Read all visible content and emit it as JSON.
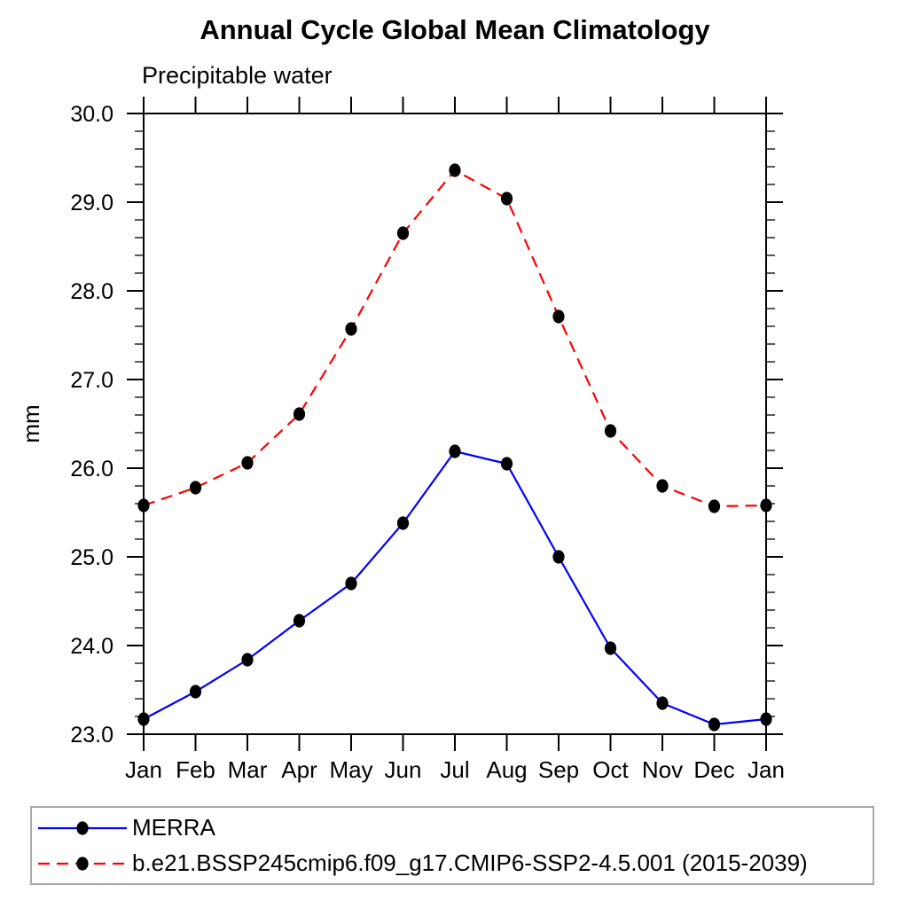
{
  "page": {
    "background": "#ffffff"
  },
  "chart_data": {
    "type": "line",
    "title": "Annual Cycle Global Mean Climatology",
    "subtitle": "Precipitable water",
    "ylabel": "mm",
    "xlabel": "",
    "categories": [
      "Jan",
      "Feb",
      "Mar",
      "Apr",
      "May",
      "Jun",
      "Jul",
      "Aug",
      "Sep",
      "Oct",
      "Nov",
      "Dec",
      "Jan"
    ],
    "ylim": [
      23.0,
      30.0
    ],
    "ytick_labels": [
      "23.0",
      "24.0",
      "25.0",
      "26.0",
      "27.0",
      "28.0",
      "29.0",
      "30.0"
    ],
    "ytick_values": [
      23.0,
      24.0,
      25.0,
      26.0,
      27.0,
      28.0,
      29.0,
      30.0
    ],
    "y_minor_tick_interval": 0.2,
    "grid": false,
    "legend_position": "bottom-left-box",
    "marker": {
      "shape": "ellipse",
      "color": "#000000"
    },
    "series": [
      {
        "name": "MERRA",
        "color": "#0000ff",
        "line_style": "solid",
        "values": [
          23.17,
          23.48,
          23.84,
          24.28,
          24.7,
          25.38,
          26.19,
          26.05,
          25.0,
          23.97,
          23.35,
          23.11,
          23.17
        ]
      },
      {
        "name": "b.e21.BSSP245cmip6.f09_g17.CMIP6-SSP2-4.5.001 (2015-2039)",
        "color": "#ff0000",
        "line_style": "dashed",
        "values": [
          25.58,
          25.78,
          26.06,
          26.61,
          27.57,
          28.65,
          29.36,
          29.04,
          27.71,
          26.42,
          25.8,
          25.57,
          25.58
        ]
      }
    ]
  }
}
